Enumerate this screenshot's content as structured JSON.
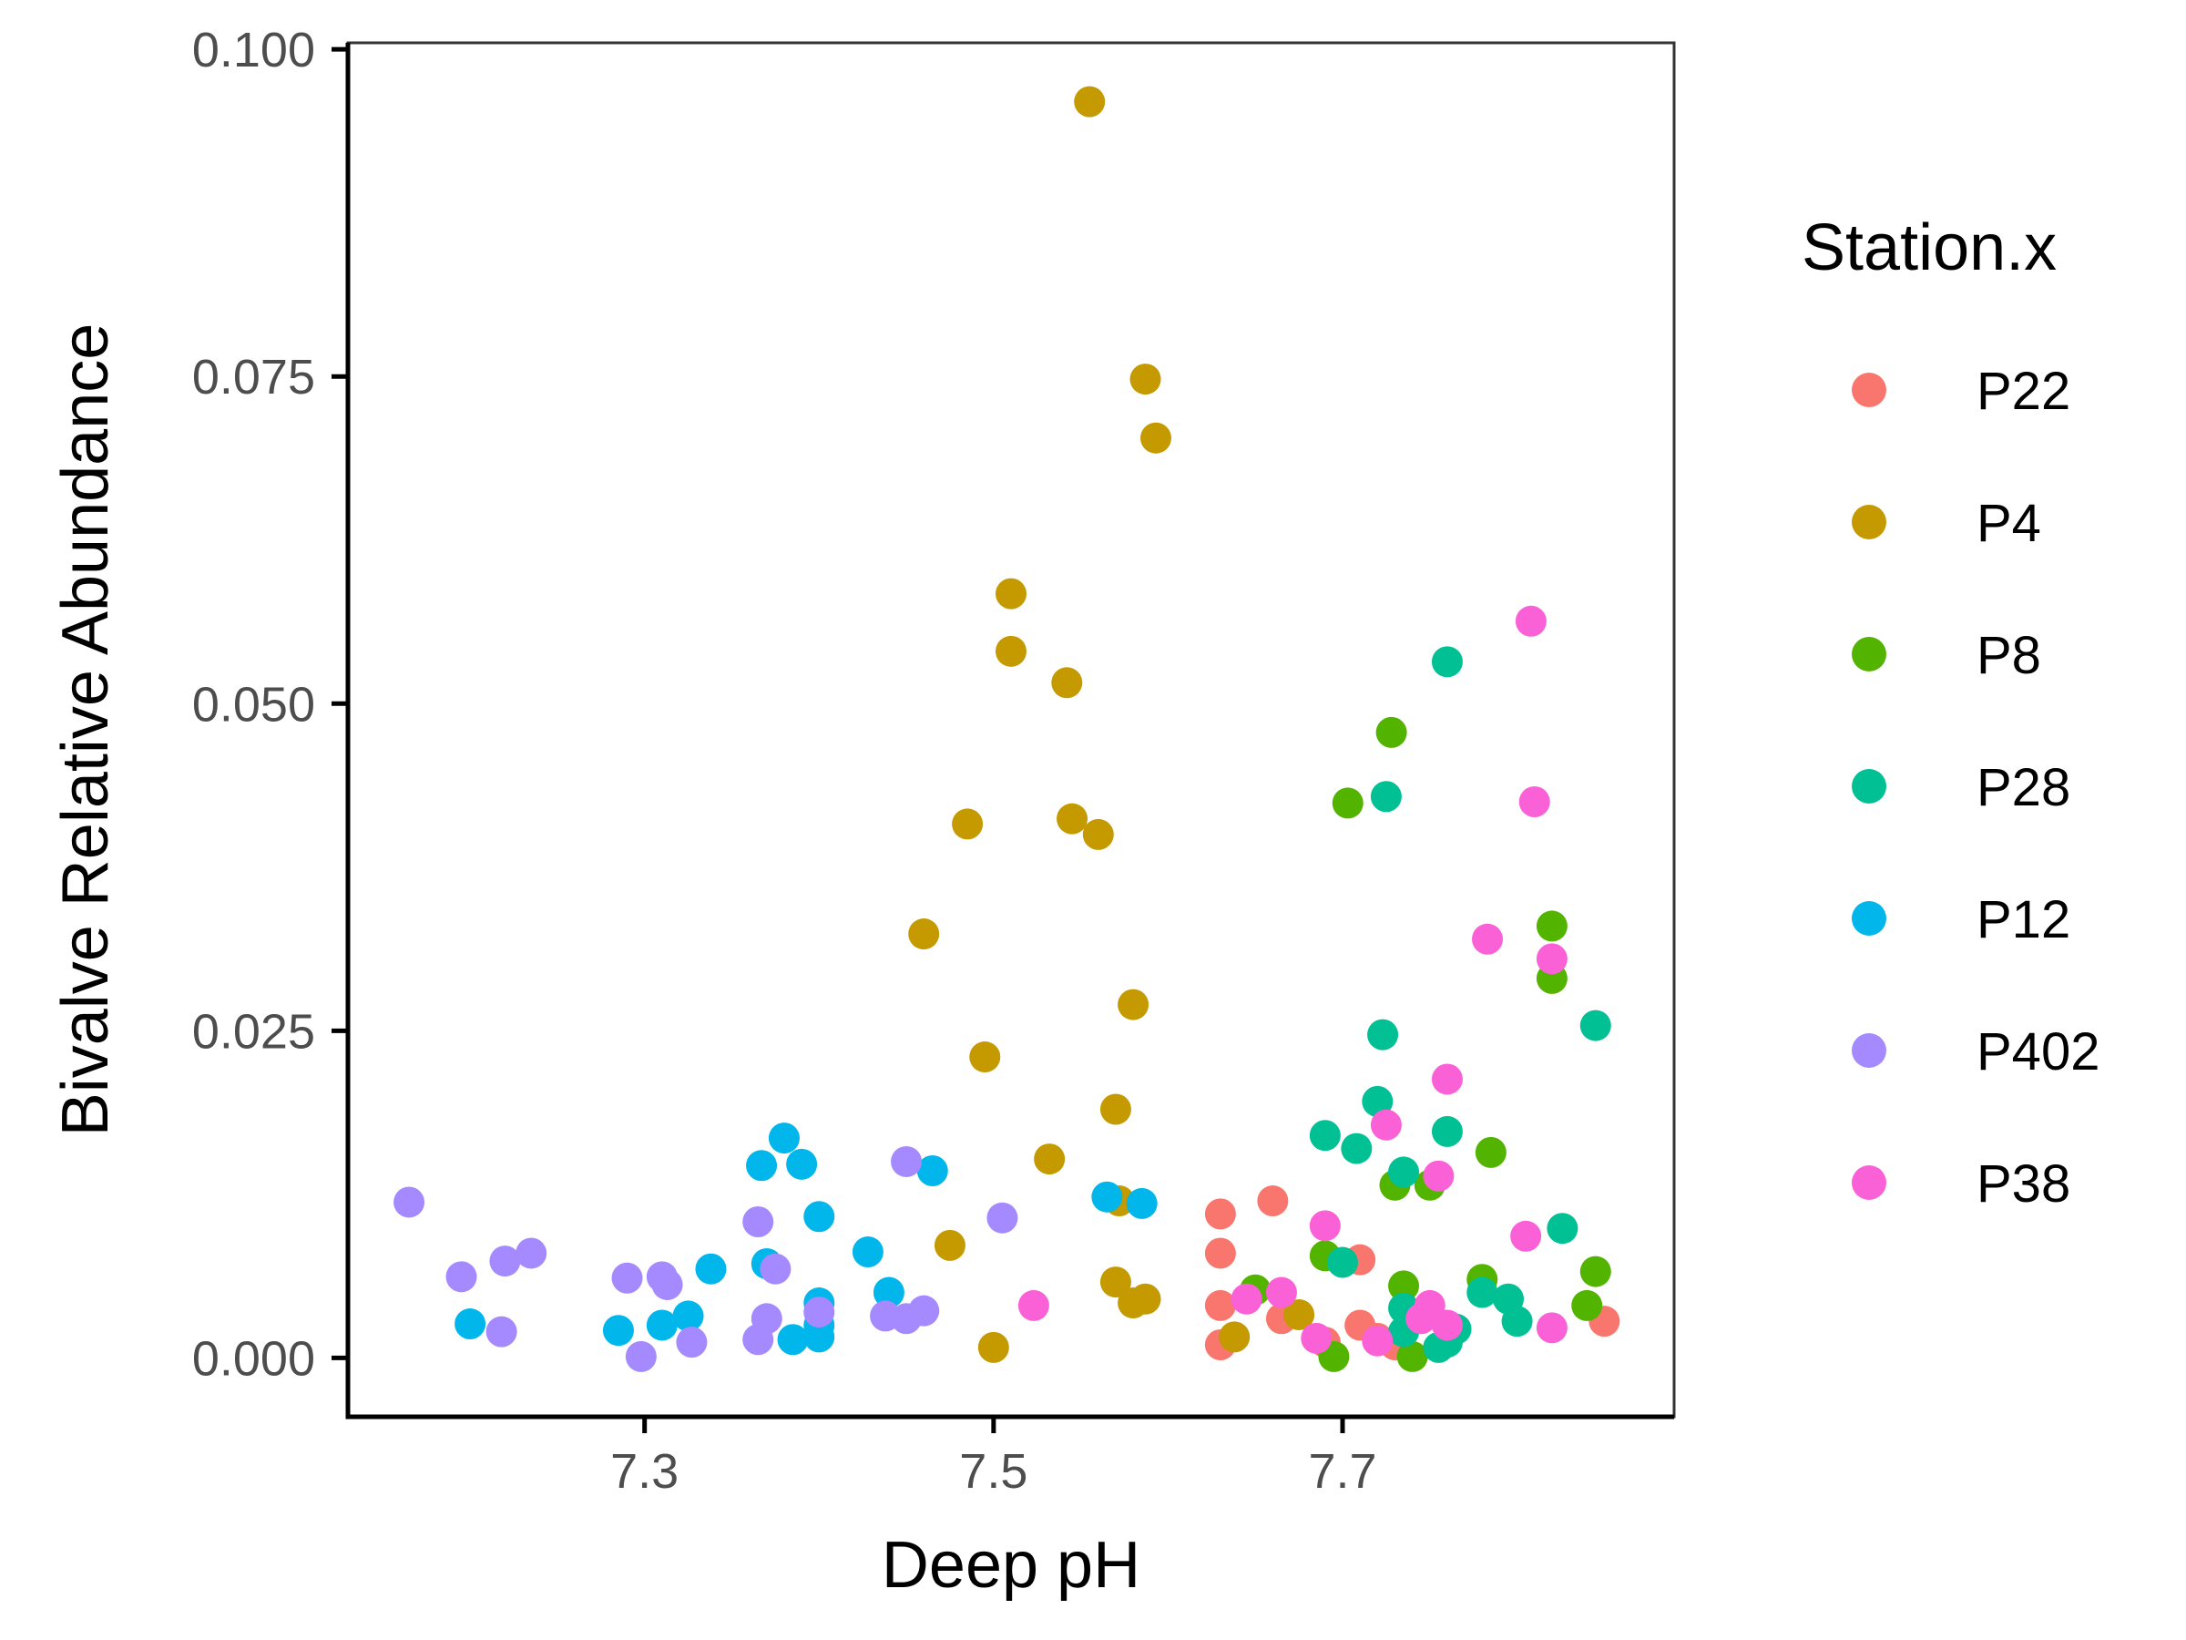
{
  "chart_data": {
    "type": "scatter",
    "xlabel": "Deep pH",
    "ylabel": "Bivalve Relative Abundance",
    "xlim": [
      7.13,
      7.89
    ],
    "ylim": [
      -0.0045,
      0.1005
    ],
    "x_ticks": [
      {
        "value": 7.3,
        "label": "7.3"
      },
      {
        "value": 7.5,
        "label": "7.5"
      },
      {
        "value": 7.7,
        "label": "7.7"
      }
    ],
    "y_ticks": [
      {
        "value": 0.0,
        "label": "0.000"
      },
      {
        "value": 0.025,
        "label": "0.025"
      },
      {
        "value": 0.05,
        "label": "0.050"
      },
      {
        "value": 0.075,
        "label": "0.075"
      },
      {
        "value": 0.1,
        "label": "0.100"
      }
    ],
    "grid": false,
    "legend": {
      "title": "Station.x",
      "position": "right"
    },
    "series": [
      {
        "name": "P22",
        "color": "#F8766D",
        "points": [
          [
            7.63,
            0.011
          ],
          [
            7.66,
            0.012
          ],
          [
            7.63,
            0.008
          ],
          [
            7.71,
            0.0075
          ],
          [
            7.63,
            0.004
          ],
          [
            7.665,
            0.003
          ],
          [
            7.71,
            0.0025
          ],
          [
            7.63,
            0.001
          ],
          [
            7.72,
            0.0015
          ],
          [
            7.85,
            0.0028
          ],
          [
            7.69,
            0.0012
          ],
          [
            7.73,
            0.001
          ]
        ]
      },
      {
        "name": "P4",
        "color": "#C49A00",
        "points": [
          [
            7.555,
            0.096
          ],
          [
            7.587,
            0.0748
          ],
          [
            7.593,
            0.0703
          ],
          [
            7.51,
            0.0584
          ],
          [
            7.51,
            0.054
          ],
          [
            7.542,
            0.0516
          ],
          [
            7.485,
            0.0408
          ],
          [
            7.545,
            0.0412
          ],
          [
            7.56,
            0.04
          ],
          [
            7.46,
            0.0324
          ],
          [
            7.58,
            0.027
          ],
          [
            7.495,
            0.023
          ],
          [
            7.57,
            0.019
          ],
          [
            7.532,
            0.0152
          ],
          [
            7.572,
            0.012
          ],
          [
            7.475,
            0.0086
          ],
          [
            7.57,
            0.0058
          ],
          [
            7.587,
            0.0045
          ],
          [
            7.58,
            0.0042
          ],
          [
            7.675,
            0.0033
          ],
          [
            7.638,
            0.0016
          ],
          [
            7.5,
            0.0008
          ]
        ]
      },
      {
        "name": "P8",
        "color": "#53B400",
        "points": [
          [
            7.728,
            0.0478
          ],
          [
            7.703,
            0.0424
          ],
          [
            7.82,
            0.033
          ],
          [
            7.82,
            0.029
          ],
          [
            7.785,
            0.0157
          ],
          [
            7.73,
            0.0132
          ],
          [
            7.75,
            0.0132
          ],
          [
            7.69,
            0.0078
          ],
          [
            7.78,
            0.006
          ],
          [
            7.845,
            0.0066
          ],
          [
            7.735,
            0.0055
          ],
          [
            7.65,
            0.0052
          ],
          [
            7.84,
            0.004
          ],
          [
            7.695,
            0.0001
          ],
          [
            7.74,
            0.0001
          ]
        ]
      },
      {
        "name": "P28",
        "color": "#00C094",
        "points": [
          [
            7.76,
            0.0532
          ],
          [
            7.725,
            0.0429
          ],
          [
            7.845,
            0.0254
          ],
          [
            7.723,
            0.0247
          ],
          [
            7.72,
            0.0196
          ],
          [
            7.76,
            0.0173
          ],
          [
            7.69,
            0.017
          ],
          [
            7.708,
            0.016
          ],
          [
            7.735,
            0.0142
          ],
          [
            7.826,
            0.0099
          ],
          [
            7.7,
            0.0073
          ],
          [
            7.78,
            0.005
          ],
          [
            7.795,
            0.0045
          ],
          [
            7.735,
            0.0038
          ],
          [
            7.8,
            0.0028
          ],
          [
            7.765,
            0.0022
          ],
          [
            7.755,
            0.0008
          ],
          [
            7.76,
            0.0012
          ],
          [
            7.735,
            0.002
          ]
        ]
      },
      {
        "name": "P12",
        "color": "#00B6EB",
        "points": [
          [
            7.38,
            0.0168
          ],
          [
            7.367,
            0.0147
          ],
          [
            7.39,
            0.0148
          ],
          [
            7.465,
            0.0143
          ],
          [
            7.565,
            0.0123
          ],
          [
            7.585,
            0.0118
          ],
          [
            7.4,
            0.0108
          ],
          [
            7.428,
            0.0081
          ],
          [
            7.37,
            0.0072
          ],
          [
            7.338,
            0.0068
          ],
          [
            7.44,
            0.005
          ],
          [
            7.4,
            0.0042
          ],
          [
            7.325,
            0.0032
          ],
          [
            7.31,
            0.0025
          ],
          [
            7.2,
            0.0026
          ],
          [
            7.285,
            0.0021
          ],
          [
            7.385,
            0.0014
          ],
          [
            7.4,
            0.0016
          ],
          [
            7.4,
            0.0025
          ]
        ]
      },
      {
        "name": "P402",
        "color": "#A58AFF",
        "points": [
          [
            7.165,
            0.0119
          ],
          [
            7.45,
            0.015
          ],
          [
            7.365,
            0.0104
          ],
          [
            7.505,
            0.0107
          ],
          [
            7.235,
            0.008
          ],
          [
            7.22,
            0.0074
          ],
          [
            7.195,
            0.0062
          ],
          [
            7.29,
            0.0061
          ],
          [
            7.31,
            0.0062
          ],
          [
            7.313,
            0.0056
          ],
          [
            7.375,
            0.0068
          ],
          [
            7.4,
            0.0035
          ],
          [
            7.46,
            0.0036
          ],
          [
            7.438,
            0.0032
          ],
          [
            7.45,
            0.003
          ],
          [
            7.37,
            0.003
          ],
          [
            7.218,
            0.002
          ],
          [
            7.327,
            0.0012
          ],
          [
            7.365,
            0.0014
          ],
          [
            7.298,
            0.0001
          ]
        ]
      },
      {
        "name": "P38",
        "color": "#FB61D7",
        "points": [
          [
            7.808,
            0.0563
          ],
          [
            7.81,
            0.0425
          ],
          [
            7.783,
            0.032
          ],
          [
            7.82,
            0.0305
          ],
          [
            7.76,
            0.0213
          ],
          [
            7.725,
            0.0178
          ],
          [
            7.755,
            0.0139
          ],
          [
            7.69,
            0.0101
          ],
          [
            7.805,
            0.0093
          ],
          [
            7.523,
            0.004
          ],
          [
            7.665,
            0.005
          ],
          [
            7.645,
            0.0045
          ],
          [
            7.75,
            0.004
          ],
          [
            7.745,
            0.003
          ],
          [
            7.76,
            0.0025
          ],
          [
            7.82,
            0.0023
          ],
          [
            7.685,
            0.0015
          ],
          [
            7.72,
            0.0013
          ]
        ]
      }
    ]
  }
}
